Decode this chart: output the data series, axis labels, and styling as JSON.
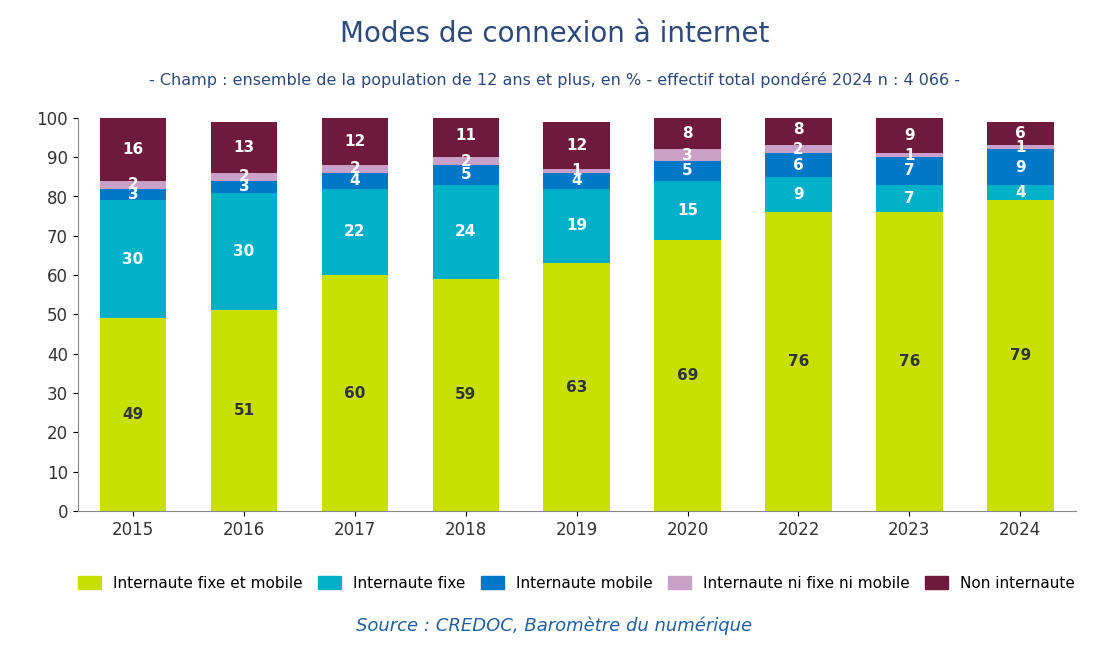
{
  "categories": [
    "2015",
    "2016",
    "2017",
    "2018",
    "2019",
    "2020",
    "2022",
    "2023",
    "2024"
  ],
  "series": {
    "Internaute fixe et mobile": [
      49,
      51,
      60,
      59,
      63,
      69,
      76,
      76,
      79
    ],
    "Internaute fixe": [
      30,
      30,
      22,
      24,
      19,
      15,
      9,
      7,
      4
    ],
    "Internaute mobile": [
      3,
      3,
      4,
      5,
      4,
      5,
      6,
      7,
      9
    ],
    "Internaute ni fixe ni mobile": [
      2,
      2,
      2,
      2,
      1,
      3,
      2,
      1,
      1
    ],
    "Non internaute": [
      16,
      13,
      12,
      11,
      12,
      8,
      8,
      9,
      6
    ]
  },
  "colors": {
    "Internaute fixe et mobile": "#c8e000",
    "Internaute fixe": "#00b0c8",
    "Internaute mobile": "#0078c8",
    "Internaute ni fixe ni mobile": "#c8a0c8",
    "Non internaute": "#6e1a3c"
  },
  "title": "Modes de connexion à internet",
  "subtitle": "- Champ : ensemble de la population de 12 ans et plus, en % - effectif total pondéré 2024 n : 4 066 -",
  "source": "Source : CREDOC, Baromètre du numérique",
  "ylim": [
    0,
    100
  ],
  "yticks": [
    0,
    10,
    20,
    30,
    40,
    50,
    60,
    70,
    80,
    90,
    100
  ],
  "bar_width": 0.6,
  "title_fontsize": 20,
  "subtitle_fontsize": 11.5,
  "source_fontsize": 13,
  "label_fontsize": 11,
  "tick_fontsize": 12,
  "legend_fontsize": 11,
  "title_color": "#2e4a7a",
  "subtitle_color": "#2e4a7a",
  "text_color": "#333333",
  "axis_color": "#888888",
  "background_color": "#ffffff"
}
